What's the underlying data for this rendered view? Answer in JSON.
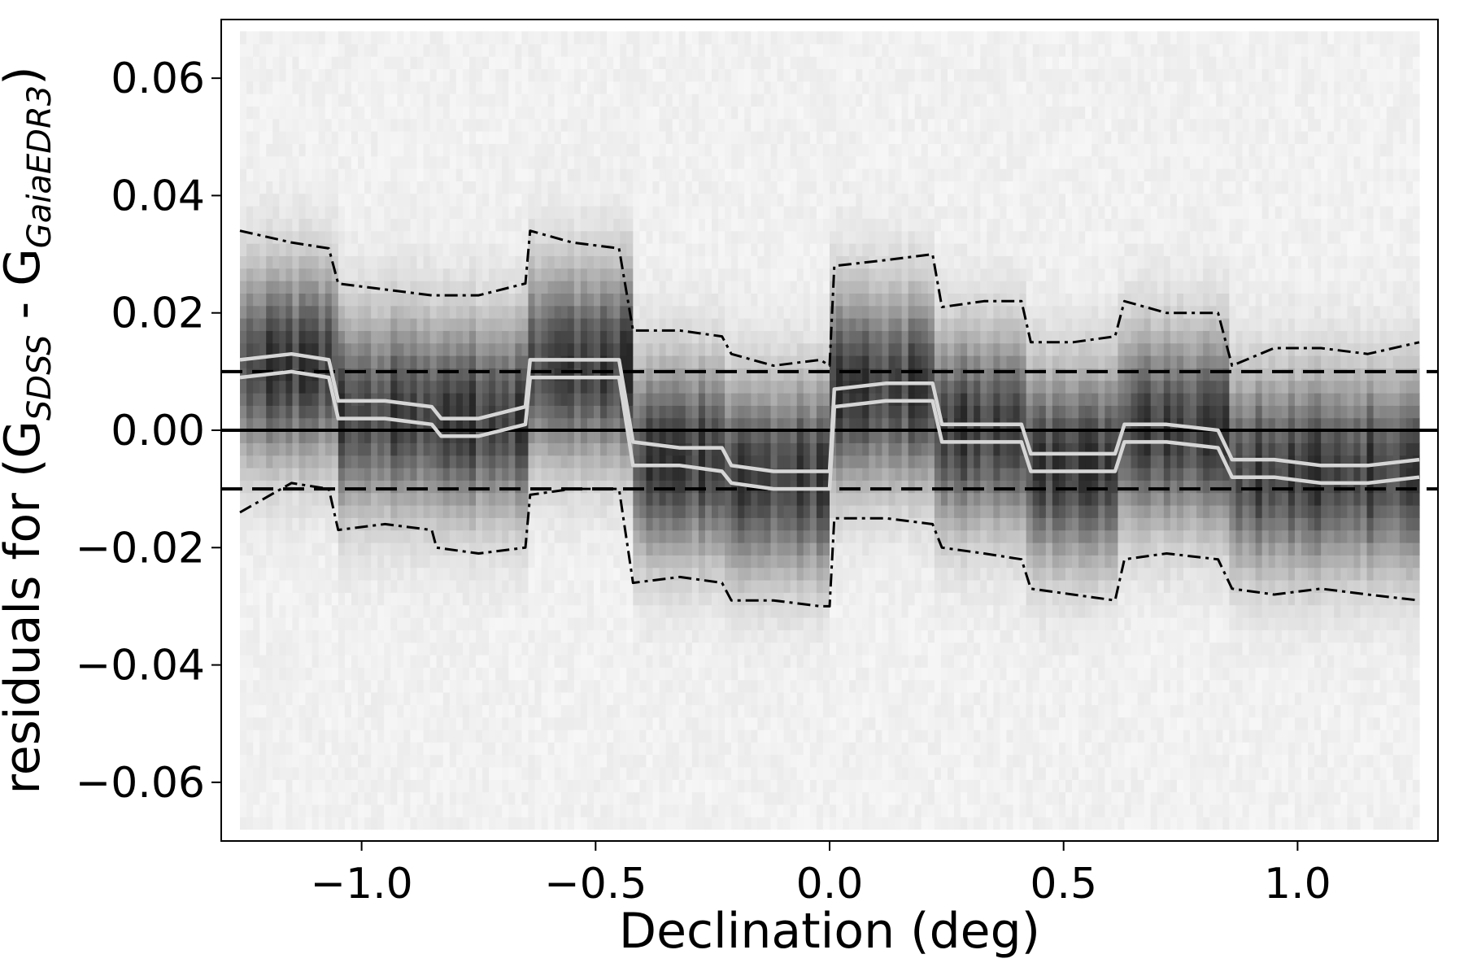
{
  "chart_data": {
    "type": "heatmap",
    "title": "",
    "xlabel": "Declination (deg)",
    "ylabel": {
      "prefix": "residuals for (G",
      "sub1": "SDSS",
      "middle": " - G",
      "sub2": "GaiaEDR3",
      "suffix": ")"
    },
    "xlim": [
      -1.3,
      1.3
    ],
    "ylim": [
      -0.07,
      0.07
    ],
    "x_ticks": [
      -1.0,
      -0.5,
      0.0,
      0.5,
      1.0
    ],
    "x_tick_labels": [
      "−1.0",
      "−0.5",
      "0.0",
      "0.5",
      "1.0"
    ],
    "y_ticks": [
      -0.06,
      -0.04,
      -0.02,
      0.0,
      0.02,
      0.04,
      0.06
    ],
    "y_tick_labels": [
      "−0.06",
      "−0.04",
      "−0.02",
      "0.00",
      "0.02",
      "0.04",
      "0.06"
    ],
    "grid": false,
    "density_x_range": [
      -1.26,
      1.26
    ],
    "density_y_range": [
      -0.068,
      0.068
    ],
    "reference_lines": [
      {
        "y": 0.0,
        "style": "solid",
        "color": "#000000"
      },
      {
        "y": 0.01,
        "style": "dashed",
        "color": "#000000"
      },
      {
        "y": -0.01,
        "style": "dashed",
        "color": "#000000"
      }
    ],
    "segments": [
      {
        "x0": -1.26,
        "x1": -1.05,
        "mean": 0.011
      },
      {
        "x0": -1.05,
        "x1": -0.85,
        "mean": 0.003
      },
      {
        "x0": -0.85,
        "x1": -0.64,
        "mean": 0.002
      },
      {
        "x0": -0.64,
        "x1": -0.42,
        "mean": 0.011
      },
      {
        "x0": -0.42,
        "x1": -0.22,
        "mean": -0.005
      },
      {
        "x0": -0.22,
        "x1": 0.0,
        "mean": -0.008
      },
      {
        "x0": 0.0,
        "x1": 0.23,
        "mean": 0.007
      },
      {
        "x0": 0.23,
        "x1": 0.42,
        "mean": 0.0
      },
      {
        "x0": 0.42,
        "x1": 0.62,
        "mean": -0.006
      },
      {
        "x0": 0.62,
        "x1": 0.86,
        "mean": 0.0
      },
      {
        "x0": 0.86,
        "x1": 1.26,
        "mean": -0.007
      }
    ],
    "series": [
      {
        "style": "solid-light",
        "color": "#d6d6d6",
        "x": [
          -1.26,
          -1.15,
          -1.07,
          -1.05,
          -0.95,
          -0.85,
          -0.83,
          -0.75,
          -0.65,
          -0.64,
          -0.55,
          -0.45,
          -0.42,
          -0.32,
          -0.23,
          -0.21,
          -0.12,
          -0.02,
          0.0,
          0.01,
          0.12,
          0.22,
          0.24,
          0.33,
          0.41,
          0.43,
          0.52,
          0.61,
          0.63,
          0.72,
          0.83,
          0.86,
          0.95,
          1.05,
          1.15,
          1.26
        ],
        "y": [
          0.012,
          0.013,
          0.012,
          0.005,
          0.005,
          0.004,
          0.002,
          0.002,
          0.004,
          0.012,
          0.012,
          0.012,
          -0.002,
          -0.003,
          -0.003,
          -0.006,
          -0.007,
          -0.007,
          -0.007,
          0.007,
          0.008,
          0.008,
          0.001,
          0.001,
          0.001,
          -0.004,
          -0.004,
          -0.004,
          0.001,
          0.001,
          0.0,
          -0.005,
          -0.005,
          -0.006,
          -0.006,
          -0.005
        ]
      },
      {
        "style": "solid-light",
        "color": "#d6d6d6",
        "x": [
          -1.26,
          -1.15,
          -1.07,
          -1.05,
          -0.95,
          -0.85,
          -0.83,
          -0.75,
          -0.65,
          -0.64,
          -0.55,
          -0.45,
          -0.42,
          -0.32,
          -0.23,
          -0.21,
          -0.12,
          -0.02,
          0.0,
          0.01,
          0.12,
          0.22,
          0.24,
          0.33,
          0.41,
          0.43,
          0.52,
          0.61,
          0.63,
          0.72,
          0.83,
          0.86,
          0.95,
          1.05,
          1.15,
          1.26
        ],
        "y": [
          0.009,
          0.01,
          0.009,
          0.002,
          0.002,
          0.001,
          -0.001,
          -0.001,
          0.001,
          0.009,
          0.009,
          0.009,
          -0.006,
          -0.006,
          -0.007,
          -0.009,
          -0.01,
          -0.01,
          -0.01,
          0.004,
          0.005,
          0.005,
          -0.002,
          -0.002,
          -0.002,
          -0.007,
          -0.007,
          -0.007,
          -0.002,
          -0.002,
          -0.003,
          -0.008,
          -0.008,
          -0.009,
          -0.009,
          -0.008
        ]
      },
      {
        "style": "dash-dot",
        "color": "#000000",
        "x": [
          -1.26,
          -1.15,
          -1.07,
          -1.05,
          -0.95,
          -0.85,
          -0.75,
          -0.65,
          -0.64,
          -0.55,
          -0.45,
          -0.42,
          -0.32,
          -0.23,
          -0.21,
          -0.12,
          -0.02,
          0.0,
          0.01,
          0.12,
          0.22,
          0.24,
          0.33,
          0.41,
          0.43,
          0.52,
          0.61,
          0.63,
          0.72,
          0.83,
          0.86,
          0.95,
          1.05,
          1.15,
          1.26
        ],
        "y": [
          0.034,
          0.032,
          0.031,
          0.025,
          0.024,
          0.023,
          0.023,
          0.025,
          0.034,
          0.032,
          0.031,
          0.017,
          0.017,
          0.016,
          0.013,
          0.011,
          0.012,
          0.011,
          0.028,
          0.029,
          0.03,
          0.021,
          0.022,
          0.022,
          0.015,
          0.015,
          0.016,
          0.022,
          0.02,
          0.02,
          0.011,
          0.014,
          0.014,
          0.013,
          0.015
        ]
      },
      {
        "style": "dash-dot",
        "color": "#000000",
        "x": [
          -1.26,
          -1.15,
          -1.07,
          -1.05,
          -0.95,
          -0.85,
          -0.84,
          -0.75,
          -0.65,
          -0.64,
          -0.55,
          -0.45,
          -0.42,
          -0.32,
          -0.23,
          -0.21,
          -0.12,
          -0.02,
          0.0,
          0.01,
          0.12,
          0.22,
          0.24,
          0.33,
          0.41,
          0.43,
          0.52,
          0.61,
          0.63,
          0.72,
          0.83,
          0.86,
          0.95,
          1.05,
          1.15,
          1.26
        ],
        "y": [
          -0.014,
          -0.009,
          -0.01,
          -0.017,
          -0.016,
          -0.017,
          -0.02,
          -0.021,
          -0.02,
          -0.011,
          -0.01,
          -0.01,
          -0.026,
          -0.025,
          -0.026,
          -0.029,
          -0.029,
          -0.03,
          -0.03,
          -0.015,
          -0.015,
          -0.016,
          -0.02,
          -0.021,
          -0.022,
          -0.027,
          -0.028,
          -0.029,
          -0.022,
          -0.021,
          -0.022,
          -0.027,
          -0.028,
          -0.027,
          -0.028,
          -0.029
        ]
      }
    ]
  }
}
